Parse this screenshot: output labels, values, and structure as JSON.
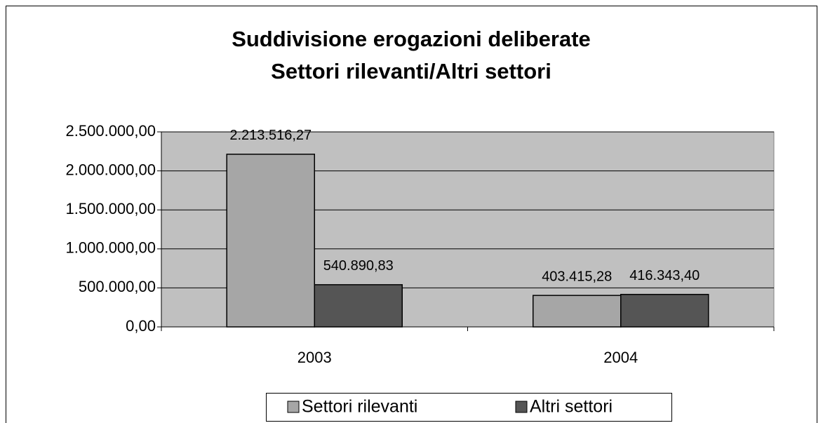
{
  "chart_data": {
    "type": "bar",
    "title": [
      "Suddivisione erogazioni deliberate",
      "Settori rilevanti/Altri settori"
    ],
    "categories": [
      "2003",
      "2004"
    ],
    "series": [
      {
        "name": "Settori rilevanti",
        "color": "#a6a6a6",
        "values": [
          2213516.27,
          403415.28
        ],
        "value_labels": [
          "2.213.516,27",
          "403.415,28"
        ]
      },
      {
        "name": "Altri settori",
        "color": "#555555",
        "values": [
          540890.83,
          416343.4
        ],
        "value_labels": [
          "540.890,83",
          "416.343,40"
        ]
      }
    ],
    "ylim": [
      0,
      2500000
    ],
    "yticks": [
      {
        "value": 0,
        "label": "0,00"
      },
      {
        "value": 500000,
        "label": "500.000,00"
      },
      {
        "value": 1000000,
        "label": "1.000.000,00"
      },
      {
        "value": 1500000,
        "label": "1.500.000,00"
      },
      {
        "value": 2000000,
        "label": "2.000.000,00"
      },
      {
        "value": 2500000,
        "label": "2.500.000,00"
      }
    ],
    "grid": true,
    "plot_background": "#c0c0c0",
    "legend": "bottom"
  }
}
